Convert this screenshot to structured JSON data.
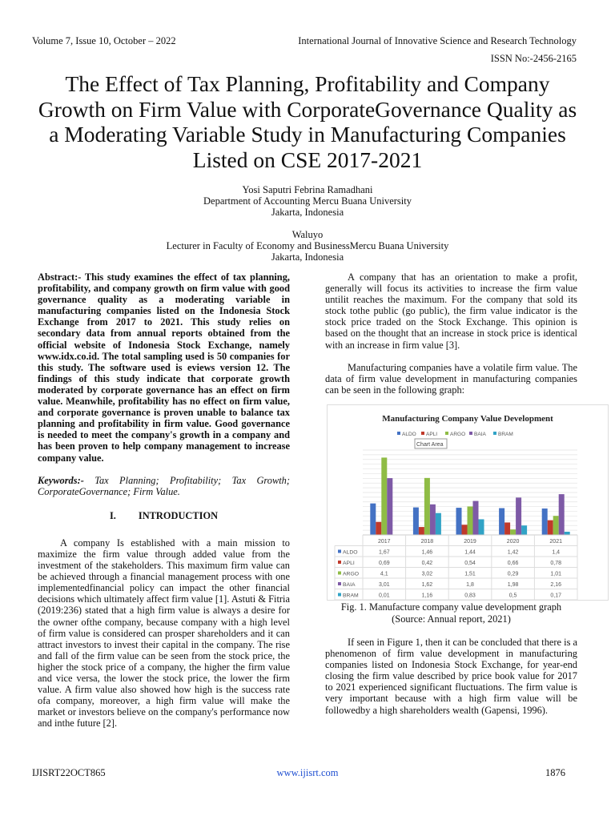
{
  "header": {
    "volume": "Volume 7, Issue 10, October – 2022",
    "journal": "International Journal of Innovative Science and Research Technology",
    "issn": "ISSN No:-2456-2165"
  },
  "title": "The Effect of Tax Planning, Profitability and Company Growth on Firm Value with CorporateGovernance Quality as a Moderating Variable Study in Manufacturing Companies Listed on CSE 2017-2021",
  "authors": [
    {
      "name": "Yosi Saputri Febrina Ramadhani",
      "affiliation": "Department of Accounting Mercu Buana University",
      "location": "Jakarta, Indonesia"
    },
    {
      "name": "Waluyo",
      "affiliation": "Lecturer in Faculty of Economy and BusinessMercu Buana University",
      "location": "Jakarta, Indonesia"
    }
  ],
  "abstract": {
    "label": "Abstract:-",
    "text": " This study examines the effect of tax planning, profitability, and company growth on firm value with good governance quality as a moderating variable in manufacturing companies listed on the Indonesia Stock Exchange from 2017 to 2021. This study relies on secondary data from annual reports obtained from the official website of Indonesia Stock Exchange, namely www.idx.co.id. The total sampling used is 50 companies for this study. The software used is eviews version 12. The findings of this study indicate that corporate growth moderated by corporate governance has an effect on firm value. Meanwhile, profitability has no effect on firm value, and corporate governance is proven unable to balance tax planning and profitability in firm value. Good governance is needed to  meet the company's growth in a company and has been proven to help company management to increase company value."
  },
  "keywords": {
    "label": "Keywords:-",
    "text": " Tax Planning; Profitability; Tax Growth; CorporateGovernance; Firm Value."
  },
  "section": {
    "number": "I.",
    "title": "INTRODUCTION"
  },
  "left_paragraphs": [
    "A company Is established with a main mission to maximize the firm value through added value from the investment of the stakeholders. This maximum firm value can be achieved through a financial management process with one implementedfinancial policy can impact the other financial decisions which ultimately affect firm value [1]. Astuti & Fitria (2019:236) stated that a high firm value is always a desire for the owner ofthe company, because company with a high level of firm value is considered can prosper shareholders and it can attract investors to invest their capital in the company. The rise and fall of the firm value can be seen from the stock price, the higher the stock price of a company, the higher the firm value and vice versa, the lower the stock price, the lower the firm value. A firm value also showed how high is the success rate ofa company, moreover, a high firm value will make the market or investors believe on the company's performance now and inthe future [2]."
  ],
  "right_paragraphs": [
    "A company that has an orientation to make a profit, generally will focus its activities to increase the firm value untilit reaches the maximum. For the company that sold its stock tothe public (go public), the firm value indicator is the stock price traded on the Stock Exchange. This opinion is based on the thought that an increase in stock price is identical with an increase in firm value [3].",
    "Manufacturing companies have a volatile firm value. The data of firm value development in manufacturing companies can be seen in the following graph:"
  ],
  "figure": {
    "caption": "Fig. 1.  Manufacture company value development graph",
    "source": "(Source: Annual report, 2021)",
    "tooltip": "Chart Area"
  },
  "after_paragraphs": [
    "If seen in Figure 1, then it can be concluded that there is a phenomenon of firm value development in manufacturing companies listed on Indonesia Stock Exchange, for year-end closing the firm value described by price book value for 2017 to 2021 experienced significant fluctuations. The firm value is very important because with a high firm value will be followedby a high shareholders wealth (Gapensi, 1996)."
  ],
  "footer": {
    "code": "IJISRT22OCT865",
    "url": "www.ijisrt.com",
    "page": "1876"
  },
  "chart_data": {
    "type": "bar",
    "title": "Manufacturing Company Value Development",
    "categories": [
      "2017",
      "2018",
      "2019",
      "2020",
      "2021"
    ],
    "series": [
      {
        "name": "ALDO",
        "color": "#4472c4",
        "values": [
          1.67,
          1.46,
          1.44,
          1.42,
          1.4
        ],
        "labels": [
          "1,67",
          "1,46",
          "1,44",
          "1,42",
          "1,4"
        ]
      },
      {
        "name": "APLI",
        "color": "#c0392b",
        "values": [
          0.69,
          0.42,
          0.54,
          0.66,
          0.78
        ],
        "labels": [
          "0,69",
          "0,42",
          "0,54",
          "0,66",
          "0,78"
        ]
      },
      {
        "name": "ARGO",
        "color": "#8fbc45",
        "values": [
          4.1,
          3.02,
          1.51,
          0.29,
          1.01
        ],
        "labels": [
          "4,1",
          "3,02",
          "1,51",
          "0,29",
          "1,01"
        ]
      },
      {
        "name": "BAIA",
        "color": "#7e5aa6",
        "values": [
          3.01,
          1.62,
          1.8,
          1.98,
          2.16
        ],
        "labels": [
          "3,01",
          "1,62",
          "1,8",
          "1,98",
          "2,16"
        ]
      },
      {
        "name": "BRAM",
        "color": "#31a3c6",
        "values": [
          0.01,
          1.16,
          0.83,
          0.5,
          0.17
        ],
        "labels": [
          "0,01",
          "1,16",
          "0,83",
          "0,5",
          "0,17"
        ]
      }
    ],
    "ylim": [
      0,
      4.5
    ],
    "grid": true,
    "legend": "top",
    "data_table": true
  }
}
